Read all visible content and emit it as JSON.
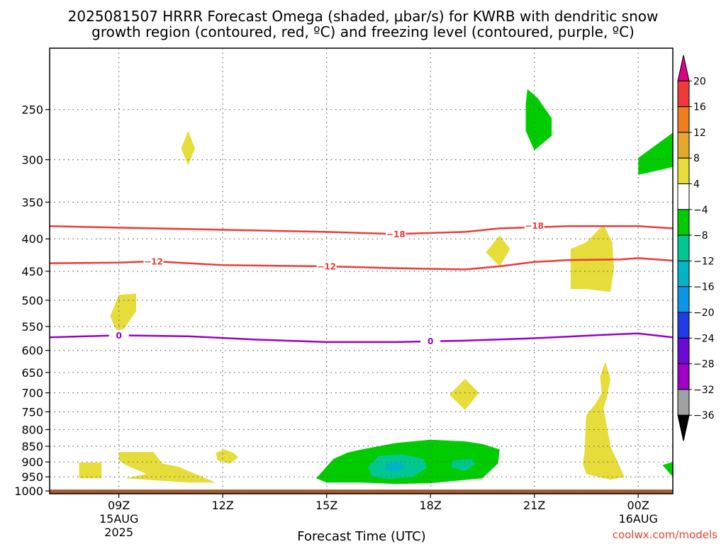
{
  "chart_data": {
    "type": "heatmap",
    "title_line1": "2025081507 HRRR Forecast Omega (shaded, μbar/s) for KWRB with dendritic snow",
    "title_line2": "growth region (contoured, red, ºC) and freezing level (contoured, purple, ºC)",
    "xlabel": "Forecast Time (UTC)",
    "credit": "coolwx.com/models",
    "xlim": [
      7,
      25
    ],
    "ylim": [
      1010,
      200
    ],
    "y_scale": "log-pressure",
    "x_ticks": [
      {
        "x": 9,
        "label": "09Z",
        "line2": "15AUG",
        "line3": "2025"
      },
      {
        "x": 12,
        "label": "12Z",
        "line2": "",
        "line3": ""
      },
      {
        "x": 15,
        "label": "15Z",
        "line2": "",
        "line3": ""
      },
      {
        "x": 18,
        "label": "18Z",
        "line2": "",
        "line3": ""
      },
      {
        "x": 21,
        "label": "21Z",
        "line2": "",
        "line3": ""
      },
      {
        "x": 24,
        "label": "00Z",
        "line2": "16AUG",
        "line3": ""
      }
    ],
    "y_ticks": [
      250,
      300,
      350,
      400,
      450,
      500,
      550,
      600,
      650,
      700,
      750,
      800,
      850,
      900,
      950,
      1000
    ],
    "grid": true,
    "colorbar": {
      "labels": [
        "20",
        "16",
        "12",
        "8",
        "4",
        "−4",
        "−8",
        "−12",
        "−16",
        "−20",
        "−24",
        "−28",
        "−32",
        "−36"
      ],
      "colors": [
        "#e0008a",
        "#ee3a3a",
        "#f07d1e",
        "#e4a82a",
        "#e6dc3a",
        "#ffffff",
        "#00cc00",
        "#00c890",
        "#00b4c8",
        "#0a96e6",
        "#1e3ce6",
        "#6a0ad2",
        "#a000c8",
        "#a0a0a0",
        "#000000"
      ]
    },
    "contour_lines": [
      {
        "name": "-18",
        "color": "#ee3a3a",
        "points": [
          [
            7,
            382
          ],
          [
            9,
            384
          ],
          [
            12,
            387
          ],
          [
            15,
            390
          ],
          [
            17,
            393
          ],
          [
            19,
            390
          ],
          [
            20,
            385
          ],
          [
            22,
            382
          ],
          [
            23.5,
            382
          ],
          [
            24,
            382
          ],
          [
            25,
            385
          ]
        ],
        "labels": [
          [
            17,
            393
          ],
          [
            21,
            381
          ]
        ]
      },
      {
        "name": "-12",
        "color": "#ee3a3a",
        "points": [
          [
            7,
            437
          ],
          [
            9,
            436
          ],
          [
            10,
            434
          ],
          [
            12,
            440
          ],
          [
            15,
            442
          ],
          [
            17,
            445
          ],
          [
            19,
            447
          ],
          [
            20,
            442
          ],
          [
            21,
            435
          ],
          [
            22,
            432
          ],
          [
            23.5,
            431
          ],
          [
            24,
            429
          ],
          [
            25,
            433
          ]
        ],
        "labels": [
          [
            10,
            434
          ],
          [
            15,
            442
          ]
        ]
      },
      {
        "name": "0",
        "color": "#9600d2",
        "points": [
          [
            7,
            572
          ],
          [
            9,
            568
          ],
          [
            11,
            570
          ],
          [
            13,
            577
          ],
          [
            15,
            582
          ],
          [
            17,
            582
          ],
          [
            19,
            579
          ],
          [
            21,
            574
          ],
          [
            23,
            567
          ],
          [
            24,
            564
          ],
          [
            25,
            572
          ]
        ],
        "labels": [
          [
            9,
            568
          ],
          [
            18,
            580
          ]
        ]
      }
    ],
    "shaded_regions": [
      {
        "value": "4",
        "color": "#e6dc3a",
        "points": [
          [
            11,
            270
          ],
          [
            11.2,
            288
          ],
          [
            11,
            306
          ],
          [
            10.8,
            288
          ]
        ]
      },
      {
        "value": "4",
        "color": "#e6dc3a",
        "points": [
          [
            9.5,
            488
          ],
          [
            9,
            490
          ],
          [
            8.75,
            530
          ],
          [
            9,
            570
          ],
          [
            9.5,
            520
          ],
          [
            9.5,
            488
          ]
        ]
      },
      {
        "value": "4",
        "color": "#e6dc3a",
        "points": [
          [
            20,
            395
          ],
          [
            20.3,
            415
          ],
          [
            20,
            442
          ],
          [
            19.6,
            420
          ]
        ]
      },
      {
        "value": "4",
        "color": "#e6dc3a",
        "points": [
          [
            23,
            380
          ],
          [
            23.25,
            405
          ],
          [
            23.3,
            445
          ],
          [
            23.2,
            485
          ],
          [
            22.5,
            480
          ],
          [
            22.05,
            480
          ],
          [
            22.05,
            415
          ],
          [
            22.5,
            405
          ]
        ]
      },
      {
        "value": "4",
        "color": "#e6dc3a",
        "points": [
          [
            19,
            665
          ],
          [
            19.4,
            700
          ],
          [
            19,
            745
          ],
          [
            18.55,
            705
          ]
        ]
      },
      {
        "value": "4",
        "color": "#e6dc3a",
        "points": [
          [
            23.05,
            625
          ],
          [
            23.2,
            665
          ],
          [
            23.1,
            710
          ],
          [
            23,
            740
          ],
          [
            23.2,
            850
          ],
          [
            23.6,
            950
          ],
          [
            23.2,
            960
          ],
          [
            22.5,
            940
          ],
          [
            22.4,
            905
          ],
          [
            22.45,
            870
          ],
          [
            22.5,
            760
          ],
          [
            22.75,
            730
          ],
          [
            22.95,
            700
          ],
          [
            22.9,
            660
          ]
        ]
      },
      {
        "value": "4",
        "color": "#e6dc3a",
        "points": [
          [
            7.85,
            902
          ],
          [
            8.5,
            902
          ],
          [
            8.5,
            955
          ],
          [
            7.85,
            955
          ]
        ]
      },
      {
        "value": "4",
        "color": "#e6dc3a",
        "points": [
          [
            9,
            868
          ],
          [
            10,
            868
          ],
          [
            10.25,
            905
          ],
          [
            10.7,
            915
          ],
          [
            11.8,
            970
          ],
          [
            11,
            970
          ],
          [
            9.2,
            955
          ],
          [
            9.8,
            940
          ],
          [
            9.2,
            910
          ],
          [
            9,
            895
          ]
        ]
      },
      {
        "value": "4",
        "color": "#e6dc3a",
        "points": [
          [
            12.05,
            860
          ],
          [
            12.3,
            870
          ],
          [
            12.45,
            885
          ],
          [
            12.2,
            905
          ],
          [
            11.85,
            895
          ],
          [
            11.8,
            870
          ]
        ]
      },
      {
        "value": "-4",
        "color": "#00cc00",
        "points": [
          [
            20.8,
            232
          ],
          [
            21.1,
            240
          ],
          [
            21.5,
            258
          ],
          [
            21.5,
            275
          ],
          [
            21,
            290
          ],
          [
            20.75,
            270
          ],
          [
            20.75,
            245
          ]
        ]
      },
      {
        "value": "-4",
        "color": "#00cc00",
        "points": [
          [
            25,
            272
          ],
          [
            24.3,
            290
          ],
          [
            24,
            298
          ],
          [
            24,
            317
          ],
          [
            25,
            308
          ]
        ]
      },
      {
        "value": "-4",
        "color": "#00cc00",
        "points": [
          [
            25,
            900
          ],
          [
            24.7,
            910
          ],
          [
            25,
            950
          ]
        ]
      },
      {
        "value": "-4",
        "color": "#00cc00",
        "points": [
          [
            16,
            860
          ],
          [
            17,
            840
          ],
          [
            18,
            830
          ],
          [
            19,
            835
          ],
          [
            19.5,
            843
          ],
          [
            20,
            860
          ],
          [
            19.95,
            905
          ],
          [
            19.5,
            955
          ],
          [
            18,
            972
          ],
          [
            17,
            975
          ],
          [
            16,
            970
          ],
          [
            15,
            970
          ],
          [
            14.7,
            955
          ],
          [
            15,
            915
          ],
          [
            15.2,
            890
          ],
          [
            15.6,
            870
          ]
        ]
      },
      {
        "value": "-8",
        "color": "#00c890",
        "points": [
          [
            16.5,
            880
          ],
          [
            17.2,
            875
          ],
          [
            17.8,
            890
          ],
          [
            17.9,
            920
          ],
          [
            17.5,
            950
          ],
          [
            16.8,
            958
          ],
          [
            16.3,
            948
          ],
          [
            16.2,
            915
          ]
        ]
      },
      {
        "value": "-8",
        "color": "#00c890",
        "points": [
          [
            18.65,
            895
          ],
          [
            19.2,
            890
          ],
          [
            19.3,
            905
          ],
          [
            19,
            930
          ],
          [
            18.6,
            918
          ]
        ]
      },
      {
        "value": "-12",
        "color": "#00b4c8",
        "points": [
          [
            16.7,
            905
          ],
          [
            17.1,
            900
          ],
          [
            17.3,
            918
          ],
          [
            17.0,
            935
          ],
          [
            16.7,
            925
          ]
        ]
      }
    ],
    "ground_color": "#a85a28"
  }
}
